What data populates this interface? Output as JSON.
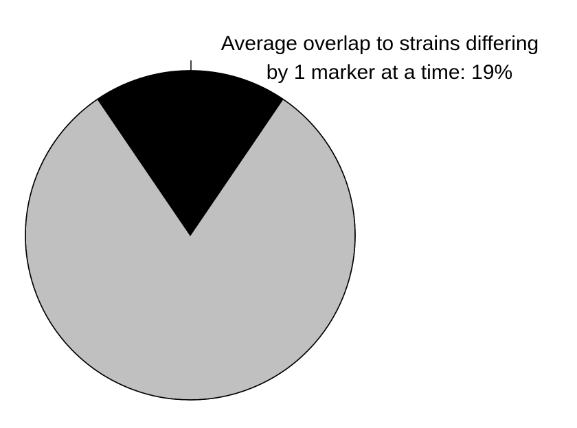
{
  "chart_data": {
    "type": "pie",
    "title": "",
    "slices": [
      {
        "label": "",
        "value": 19,
        "color": "#000000"
      },
      {
        "label": "",
        "value": 81,
        "color": "#c0c0c0"
      }
    ],
    "start": "top",
    "direction": "clockwise",
    "annotation": {
      "line1": "Average overlap to strains differing",
      "line2": "by 1 marker at a time: 19%"
    },
    "edge_color": "#000000"
  }
}
